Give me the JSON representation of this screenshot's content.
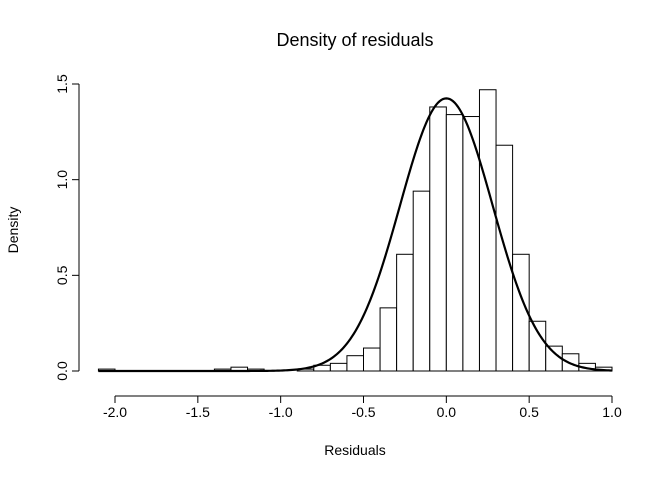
{
  "chart_data": {
    "type": "bar",
    "title": "Density of residuals",
    "xlabel": "Residuals",
    "ylabel": "Density",
    "xlim": [
      -2.1,
      1.0
    ],
    "ylim": [
      0,
      1.5
    ],
    "x_ticks": [
      {
        "value": -2.0,
        "label": "-2.0"
      },
      {
        "value": -1.5,
        "label": "-1.5"
      },
      {
        "value": -1.0,
        "label": "-1.0"
      },
      {
        "value": -0.5,
        "label": "-0.5"
      },
      {
        "value": 0.0,
        "label": "0.0"
      },
      {
        "value": 0.5,
        "label": "0.5"
      },
      {
        "value": 1.0,
        "label": "1.0"
      }
    ],
    "y_ticks": [
      {
        "value": 0.0,
        "label": "0.0"
      },
      {
        "value": 0.5,
        "label": "0.5"
      },
      {
        "value": 1.0,
        "label": "1.0"
      },
      {
        "value": 1.5,
        "label": "1.5"
      }
    ],
    "bin_width": 0.1,
    "bins": [
      {
        "start": -2.1,
        "density": 0.01
      },
      {
        "start": -1.4,
        "density": 0.01
      },
      {
        "start": -1.3,
        "density": 0.02
      },
      {
        "start": -1.2,
        "density": 0.01
      },
      {
        "start": -0.9,
        "density": 0.01
      },
      {
        "start": -0.8,
        "density": 0.03
      },
      {
        "start": -0.7,
        "density": 0.04
      },
      {
        "start": -0.6,
        "density": 0.08
      },
      {
        "start": -0.5,
        "density": 0.12
      },
      {
        "start": -0.4,
        "density": 0.33
      },
      {
        "start": -0.3,
        "density": 0.61
      },
      {
        "start": -0.2,
        "density": 0.94
      },
      {
        "start": -0.1,
        "density": 1.38
      },
      {
        "start": 0.0,
        "density": 1.34
      },
      {
        "start": 0.1,
        "density": 1.33
      },
      {
        "start": 0.2,
        "density": 1.47
      },
      {
        "start": 0.3,
        "density": 1.18
      },
      {
        "start": 0.4,
        "density": 0.61
      },
      {
        "start": 0.5,
        "density": 0.26
      },
      {
        "start": 0.6,
        "density": 0.13
      },
      {
        "start": 0.7,
        "density": 0.09
      },
      {
        "start": 0.8,
        "density": 0.04
      },
      {
        "start": 0.9,
        "density": 0.02
      }
    ],
    "density_curve": {
      "distribution": "normal",
      "mean": 0.0,
      "sd": 0.28
    },
    "grid": false,
    "legend": "none"
  }
}
